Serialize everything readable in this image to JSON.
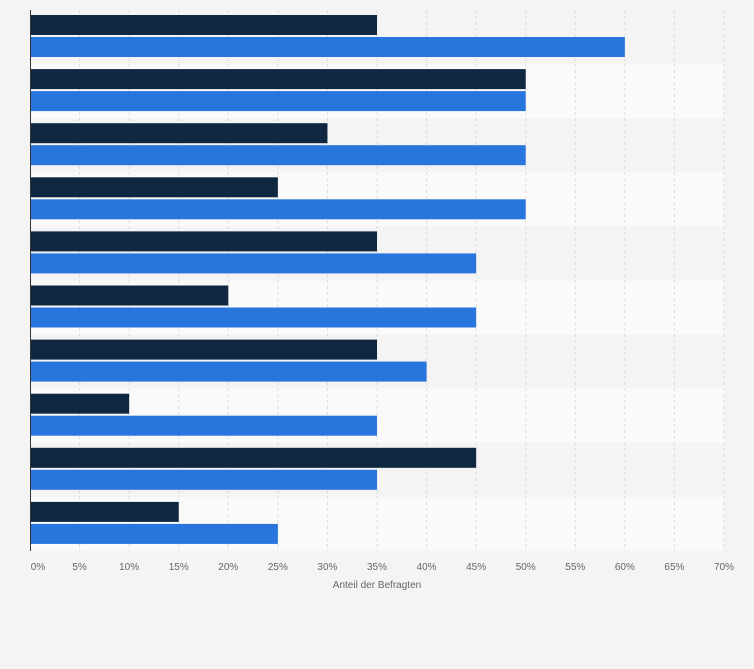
{
  "chart_data": {
    "type": "bar",
    "orientation": "horizontal",
    "title": "",
    "xlabel": "Anteil der Befragten",
    "ylabel": "",
    "xlim": [
      0,
      70
    ],
    "x_ticks": [
      "0%",
      "5%",
      "10%",
      "15%",
      "20%",
      "25%",
      "30%",
      "35%",
      "40%",
      "45%",
      "50%",
      "55%",
      "60%",
      "65%",
      "70%"
    ],
    "tick_values": [
      0,
      5,
      10,
      15,
      20,
      25,
      30,
      35,
      40,
      45,
      50,
      55,
      60,
      65,
      70
    ],
    "categories": [
      "",
      "",
      "",
      "",
      "",
      "",
      "",
      "",
      "",
      ""
    ],
    "grid": true,
    "legend": "none",
    "series": [
      {
        "color": "#0f2741",
        "values": [
          35,
          50,
          30,
          25,
          35,
          20,
          35,
          10,
          45,
          15
        ]
      },
      {
        "color": "#2876dd",
        "values": [
          60,
          50,
          50,
          50,
          45,
          45,
          40,
          35,
          35,
          25
        ]
      }
    ]
  }
}
